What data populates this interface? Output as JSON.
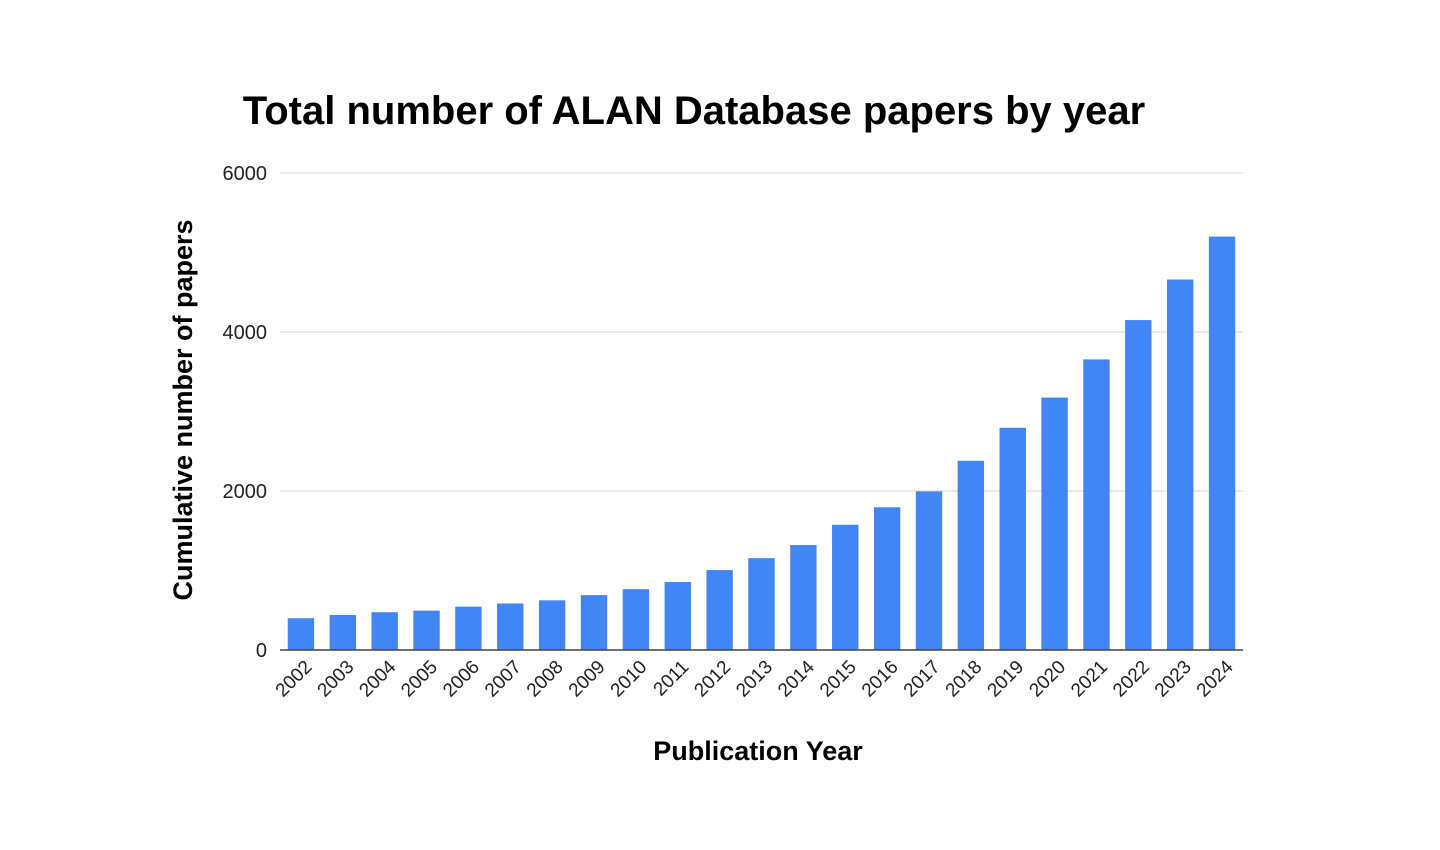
{
  "chart_data": {
    "type": "bar",
    "title": "Total number of ALAN Database papers by year",
    "xlabel": "Publication Year",
    "ylabel": "Cumulative number of papers",
    "categories": [
      "2002",
      "2003",
      "2004",
      "2005",
      "2006",
      "2007",
      "2008",
      "2009",
      "2010",
      "2011",
      "2012",
      "2013",
      "2014",
      "2015",
      "2016",
      "2017",
      "2018",
      "2019",
      "2020",
      "2021",
      "2022",
      "2023",
      "2024"
    ],
    "values": [
      400,
      440,
      475,
      495,
      545,
      585,
      625,
      690,
      765,
      855,
      1005,
      1155,
      1320,
      1575,
      1795,
      1995,
      2380,
      2795,
      3175,
      3655,
      4150,
      4660,
      5200
    ],
    "yticks": [
      "0",
      "2000",
      "4000",
      "6000"
    ],
    "ylim": [
      0,
      6000
    ],
    "grid": true,
    "legend": "none",
    "bar_color": "#4285f4"
  }
}
